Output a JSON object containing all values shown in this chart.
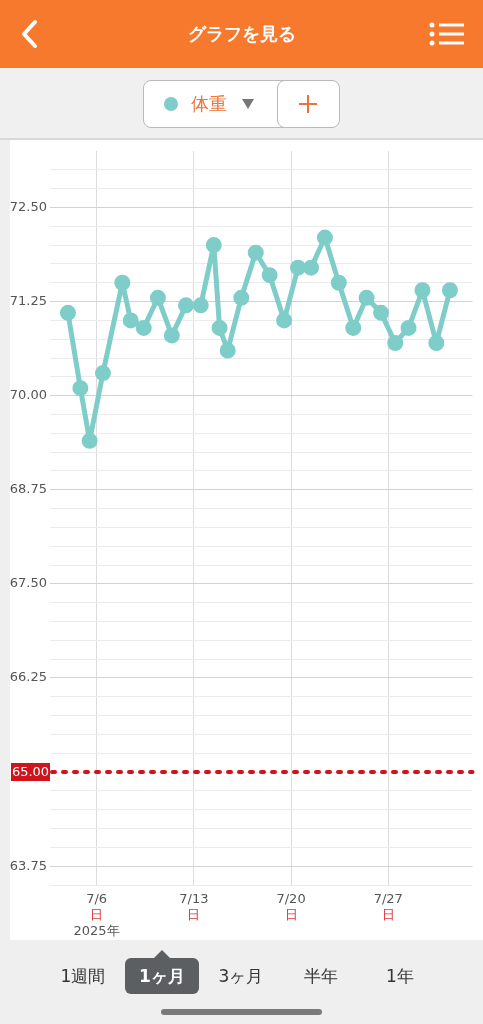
{
  "chart_data": {
    "type": "line",
    "title": "グラフを見る",
    "x": [
      "2025-07-03T22:30",
      "2025-07-04T20:00",
      "2025-07-05T12:00",
      "2025-07-06T11:00",
      "2025-07-07T20:30",
      "2025-07-08T11:00",
      "2025-07-09T09:30",
      "2025-07-10T10:00",
      "2025-07-11T10:00",
      "2025-07-12T10:30",
      "2025-07-13T12:00",
      "2025-07-14T10:30",
      "2025-07-14T20:30",
      "2025-07-15T10:30",
      "2025-07-16T10:00",
      "2025-07-17T11:00",
      "2025-07-18T11:00",
      "2025-07-19T12:00",
      "2025-07-20T12:00",
      "2025-07-21T10:30",
      "2025-07-22T10:30",
      "2025-07-23T10:30",
      "2025-07-24T11:30",
      "2025-07-25T10:30",
      "2025-07-26T11:30",
      "2025-07-27T12:00",
      "2025-07-28T11:00",
      "2025-07-29T11:00",
      "2025-07-30T11:00",
      "2025-07-31T10:30"
    ],
    "series": [
      {
        "name": "体重",
        "color": "#7ecdc8",
        "values": [
          71.1,
          70.1,
          69.4,
          70.3,
          71.5,
          71.0,
          70.9,
          71.3,
          70.8,
          71.2,
          71.2,
          72.0,
          70.9,
          70.6,
          71.3,
          71.9,
          71.6,
          71.0,
          71.7,
          71.7,
          72.1,
          71.5,
          70.9,
          71.3,
          71.1,
          70.7,
          70.9,
          71.4,
          70.7,
          71.4
        ]
      }
    ],
    "xlim": [
      "2025-07-02T15:30",
      "2025-08-02T01:30"
    ],
    "xticks": [
      {
        "value": "2025-07-06",
        "label": "7/6\n日\n2025年"
      },
      {
        "value": "2025-07-13",
        "label": "7/13\n日"
      },
      {
        "value": "2025-07-20",
        "label": "7/20\n日"
      },
      {
        "value": "2025-07-27",
        "label": "7/27\n日"
      }
    ],
    "ylim": [
      63.5,
      73.25
    ],
    "yticks": [
      {
        "value": 63.5,
        "label": null
      },
      {
        "value": 63.75,
        "label": "63.75"
      },
      {
        "value": 64,
        "label": null
      },
      {
        "value": 64.25,
        "label": null
      },
      {
        "value": 64.5,
        "label": null
      },
      {
        "value": 64.75,
        "label": null
      },
      {
        "value": 65,
        "label": null
      },
      {
        "value": 65.25,
        "label": null
      },
      {
        "value": 65.5,
        "label": null
      },
      {
        "value": 65.75,
        "label": null
      },
      {
        "value": 66,
        "label": null
      },
      {
        "value": 66.25,
        "label": "66.25"
      },
      {
        "value": 66.5,
        "label": null
      },
      {
        "value": 66.75,
        "label": null
      },
      {
        "value": 67,
        "label": null
      },
      {
        "value": 67.25,
        "label": null
      },
      {
        "value": 67.5,
        "label": "67.50"
      },
      {
        "value": 67.75,
        "label": null
      },
      {
        "value": 68,
        "label": null
      },
      {
        "value": 68.25,
        "label": null
      },
      {
        "value": 68.5,
        "label": null
      },
      {
        "value": 68.75,
        "label": "68.75"
      },
      {
        "value": 69,
        "label": null
      },
      {
        "value": 69.25,
        "label": null
      },
      {
        "value": 69.5,
        "label": null
      },
      {
        "value": 69.75,
        "label": null
      },
      {
        "value": 70,
        "label": "70.00"
      },
      {
        "value": 70.25,
        "label": null
      },
      {
        "value": 70.5,
        "label": null
      },
      {
        "value": 70.75,
        "label": null
      },
      {
        "value": 71,
        "label": null
      },
      {
        "value": 71.25,
        "label": "71.25"
      },
      {
        "value": 71.5,
        "label": null
      },
      {
        "value": 71.75,
        "label": null
      },
      {
        "value": 72,
        "label": null
      },
      {
        "value": 72.25,
        "label": null
      },
      {
        "value": 72.5,
        "label": "72.50"
      },
      {
        "value": 72.75,
        "label": null
      },
      {
        "value": 73,
        "label": null
      }
    ],
    "ref_lines": [
      {
        "axis": "y",
        "value": 65,
        "label": "65.00",
        "color": "#d0141e",
        "line_style": "dotted"
      }
    ],
    "grid": true,
    "legend": "top",
    "marker": "circle",
    "annotations": [
      "1週間",
      "1ヶ月",
      "3ヶ月",
      "半年",
      "1年"
    ]
  }
}
